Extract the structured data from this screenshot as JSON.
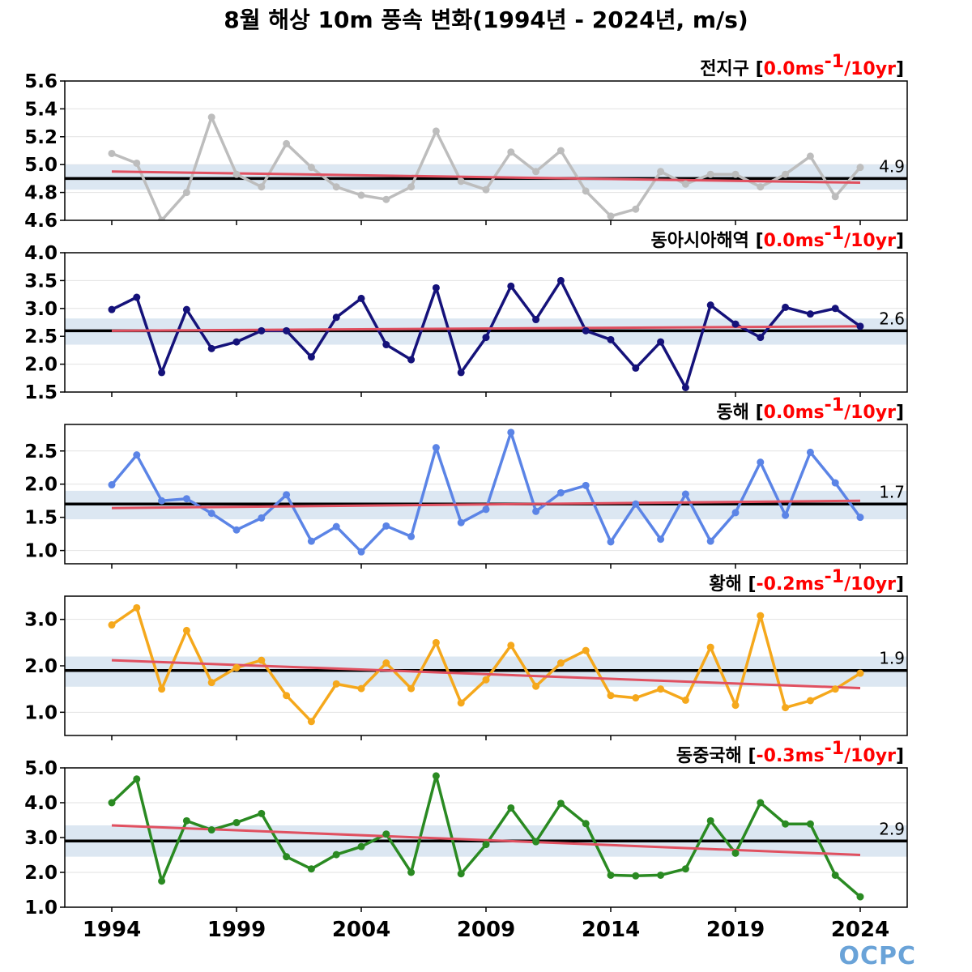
{
  "title": "8월 해상 10m 풍속 변화(1994년 - 2024년, m/s)",
  "logo": "OCPC",
  "colors": {
    "trend": "#e05060",
    "mean": "#000000",
    "band": "#dce7f2",
    "grid": "#e2e2e2"
  },
  "chart_data": [
    {
      "type": "line",
      "region": "전지구",
      "trend_text": "[0.0ms",
      "trend_sup": "-1",
      "trend_tail": "/10yr]",
      "color": "#bdbdbd",
      "mean": 4.9,
      "mean_label": "4.9",
      "band": [
        4.82,
        5.0
      ],
      "trend_line": [
        4.95,
        4.87
      ],
      "ylim": [
        4.6,
        5.6
      ],
      "yticks": [
        4.6,
        4.8,
        5.0,
        5.2,
        5.4,
        5.6
      ],
      "ytick_labels": [
        "4.6",
        "4.8",
        "5.0",
        "5.2",
        "5.4",
        "5.6"
      ],
      "x": [
        1994,
        1995,
        1996,
        1997,
        1998,
        1999,
        2000,
        2001,
        2002,
        2003,
        2004,
        2005,
        2006,
        2007,
        2008,
        2009,
        2010,
        2011,
        2012,
        2013,
        2014,
        2015,
        2016,
        2017,
        2018,
        2019,
        2020,
        2021,
        2022,
        2023,
        2024
      ],
      "values": [
        5.08,
        5.01,
        4.6,
        4.8,
        5.34,
        4.93,
        4.84,
        5.15,
        4.98,
        4.84,
        4.78,
        4.75,
        4.84,
        5.24,
        4.88,
        4.82,
        5.09,
        4.95,
        5.1,
        4.81,
        4.63,
        4.68,
        4.95,
        4.86,
        4.93,
        4.93,
        4.84,
        4.93,
        5.06,
        4.77,
        4.98
      ]
    },
    {
      "type": "line",
      "region": "동아시아해역",
      "trend_text": "[0.0ms",
      "trend_sup": "-1",
      "trend_tail": "/10yr]",
      "color": "#15127a",
      "mean": 2.6,
      "mean_label": "2.6",
      "band": [
        2.35,
        2.82
      ],
      "trend_line": [
        2.6,
        2.68
      ],
      "ylim": [
        1.5,
        4.0
      ],
      "yticks": [
        1.5,
        2.0,
        2.5,
        3.0,
        3.5,
        4.0
      ],
      "ytick_labels": [
        "1.5",
        "2.0",
        "2.5",
        "3.0",
        "3.5",
        "4.0"
      ],
      "x": [
        1994,
        1995,
        1996,
        1997,
        1998,
        1999,
        2000,
        2001,
        2002,
        2003,
        2004,
        2005,
        2006,
        2007,
        2008,
        2009,
        2010,
        2011,
        2012,
        2013,
        2014,
        2015,
        2016,
        2017,
        2018,
        2019,
        2020,
        2021,
        2022,
        2023,
        2024
      ],
      "values": [
        2.98,
        3.2,
        1.85,
        2.98,
        2.28,
        2.4,
        2.6,
        2.6,
        2.13,
        2.84,
        3.18,
        2.35,
        2.08,
        3.37,
        1.85,
        2.48,
        3.4,
        2.8,
        3.5,
        2.6,
        2.44,
        1.93,
        2.4,
        1.58,
        3.06,
        2.72,
        2.48,
        3.02,
        2.9,
        3.0,
        2.68
      ]
    },
    {
      "type": "line",
      "region": "동해",
      "trend_text": "[0.0ms",
      "trend_sup": "-1",
      "trend_tail": "/10yr]",
      "color": "#5b84e6",
      "mean": 1.7,
      "mean_label": "1.7",
      "band": [
        1.47,
        1.9
      ],
      "trend_line": [
        1.64,
        1.75
      ],
      "ylim": [
        0.8,
        2.9
      ],
      "yticks": [
        1.0,
        1.5,
        2.0,
        2.5
      ],
      "ytick_labels": [
        "1.0",
        "1.5",
        "2.0",
        "2.5"
      ],
      "x": [
        1994,
        1995,
        1996,
        1997,
        1998,
        1999,
        2000,
        2001,
        2002,
        2003,
        2004,
        2005,
        2006,
        2007,
        2008,
        2009,
        2010,
        2011,
        2012,
        2013,
        2014,
        2015,
        2016,
        2017,
        2018,
        2019,
        2020,
        2021,
        2022,
        2023,
        2024
      ],
      "values": [
        1.99,
        2.44,
        1.75,
        1.78,
        1.56,
        1.31,
        1.49,
        1.84,
        1.14,
        1.36,
        0.98,
        1.37,
        1.21,
        2.55,
        1.42,
        1.62,
        2.78,
        1.59,
        1.87,
        1.98,
        1.13,
        1.7,
        1.17,
        1.85,
        1.14,
        1.57,
        2.33,
        1.53,
        2.48,
        2.02,
        1.5
      ]
    },
    {
      "type": "line",
      "region": "황해",
      "trend_text": "[-0.2ms",
      "trend_sup": "-1",
      "trend_tail": "/10yr]",
      "color": "#f5a81c",
      "mean": 1.9,
      "mean_label": "1.9",
      "band": [
        1.55,
        2.2
      ],
      "trend_line": [
        2.12,
        1.52
      ],
      "ylim": [
        0.5,
        3.5
      ],
      "yticks": [
        1.0,
        2.0,
        3.0
      ],
      "ytick_labels": [
        "1.0",
        "2.0",
        "3.0"
      ],
      "x": [
        1994,
        1995,
        1996,
        1997,
        1998,
        1999,
        2000,
        2001,
        2002,
        2003,
        2004,
        2005,
        2006,
        2007,
        2008,
        2009,
        2010,
        2011,
        2012,
        2013,
        2014,
        2015,
        2016,
        2017,
        2018,
        2019,
        2020,
        2021,
        2022,
        2023,
        2024
      ],
      "values": [
        2.88,
        3.25,
        1.5,
        2.76,
        1.64,
        1.96,
        2.12,
        1.36,
        0.8,
        1.61,
        1.51,
        2.06,
        1.51,
        2.5,
        1.2,
        1.7,
        2.44,
        1.56,
        2.06,
        2.33,
        1.36,
        1.31,
        1.5,
        1.26,
        2.4,
        1.15,
        3.08,
        1.1,
        1.25,
        1.5,
        1.84
      ]
    },
    {
      "type": "line",
      "region": "동중국해",
      "trend_text": "[-0.3ms",
      "trend_sup": "-1",
      "trend_tail": "/10yr]",
      "color": "#2a8a22",
      "mean": 2.9,
      "mean_label": "2.9",
      "band": [
        2.45,
        3.35
      ],
      "trend_line": [
        3.35,
        2.5
      ],
      "ylim": [
        1.0,
        5.0
      ],
      "yticks": [
        1.0,
        2.0,
        3.0,
        4.0,
        5.0
      ],
      "ytick_labels": [
        "1.0",
        "2.0",
        "3.0",
        "4.0",
        "5.0"
      ],
      "x": [
        1994,
        1995,
        1996,
        1997,
        1998,
        1999,
        2000,
        2001,
        2002,
        2003,
        2004,
        2005,
        2006,
        2007,
        2008,
        2009,
        2010,
        2011,
        2012,
        2013,
        2014,
        2015,
        2016,
        2017,
        2018,
        2019,
        2020,
        2021,
        2022,
        2023,
        2024
      ],
      "values": [
        4.0,
        4.68,
        1.75,
        3.48,
        3.22,
        3.43,
        3.69,
        2.45,
        2.1,
        2.51,
        2.74,
        3.1,
        2.0,
        4.77,
        1.96,
        2.8,
        3.85,
        2.88,
        3.98,
        3.4,
        1.92,
        1.9,
        1.92,
        2.1,
        3.48,
        2.55,
        4.0,
        3.39,
        3.39,
        1.92,
        1.3
      ]
    }
  ],
  "xaxis": {
    "ticks": [
      1994,
      1999,
      2004,
      2009,
      2014,
      2019,
      2024
    ],
    "tick_labels": [
      "1994",
      "1999",
      "2004",
      "2009",
      "2014",
      "2019",
      "2024"
    ]
  }
}
